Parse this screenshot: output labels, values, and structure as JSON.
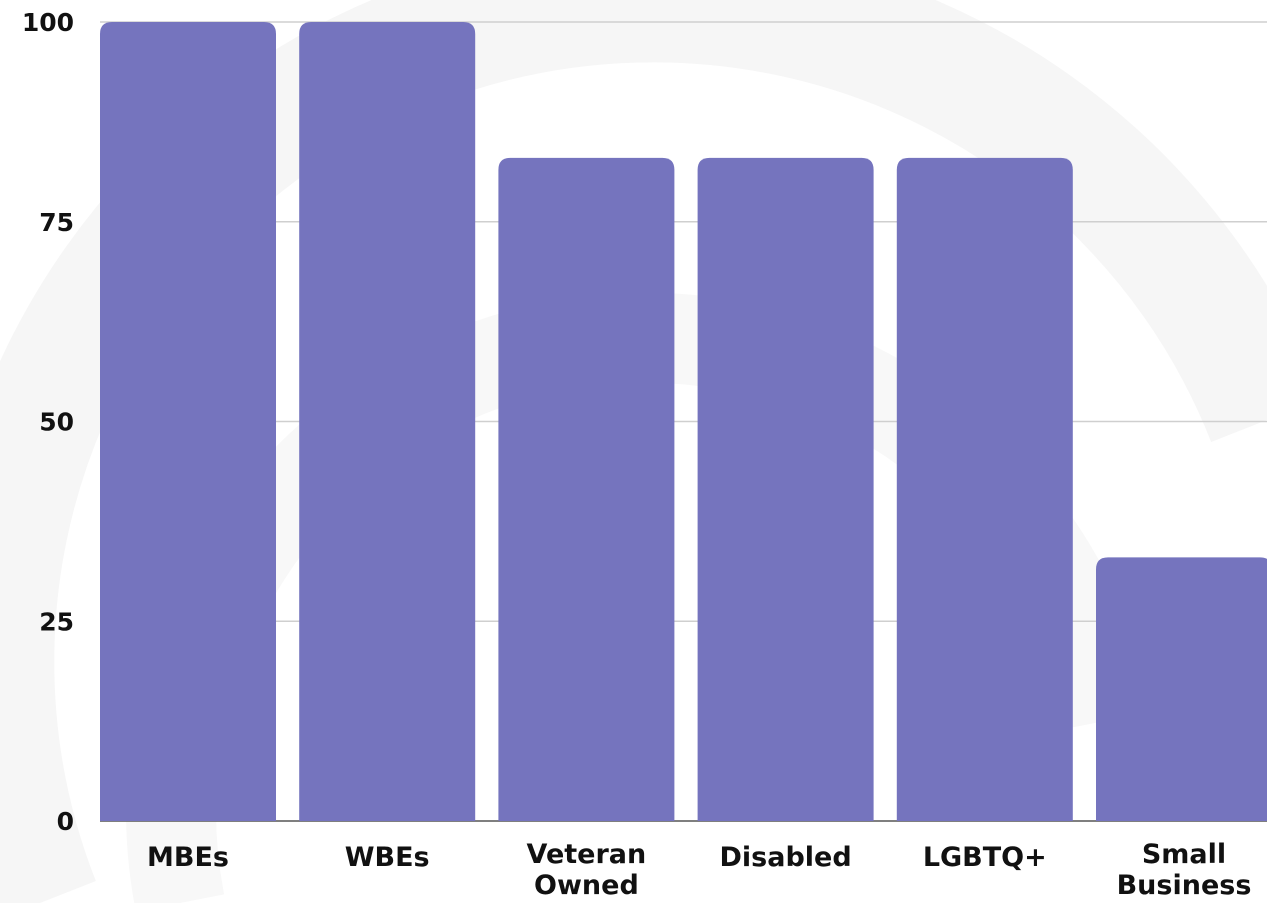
{
  "chart_data": {
    "type": "bar",
    "title": "",
    "xlabel": "",
    "ylabel": "",
    "categories": [
      [
        "MBEs"
      ],
      [
        "WBEs"
      ],
      [
        "Veteran",
        "Owned"
      ],
      [
        "Disabled"
      ],
      [
        "LGBTQ+"
      ],
      [
        "Small",
        "Business"
      ]
    ],
    "values": [
      100,
      100,
      83,
      83,
      83,
      33
    ],
    "ylim": [
      0,
      100
    ],
    "yticks": [
      "0",
      "25",
      "50",
      "75",
      "100"
    ],
    "grid": true,
    "legend": "none",
    "bar_color": "#7574be",
    "background_color": "#ffffff"
  }
}
